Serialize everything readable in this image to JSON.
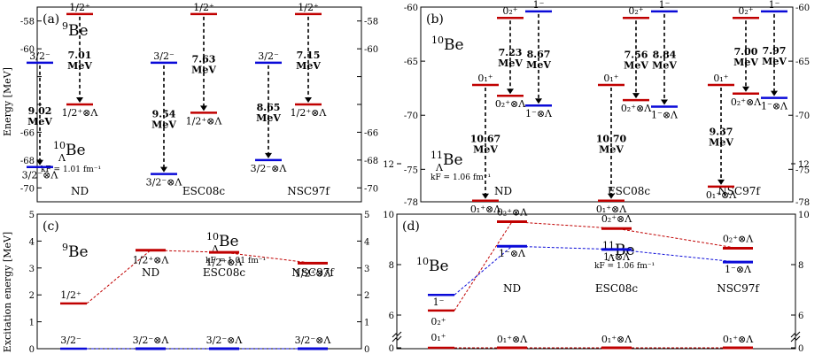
{
  "colors": {
    "red": "#c00000",
    "blue": "#0a0ad8",
    "axis": "#000000"
  },
  "y_axis_labels": {
    "top": "Energy [MeV]",
    "bottom": "Excitation energy [MeV]"
  },
  "chart_data": [
    {
      "panel": "(a)",
      "type": "level-diagram",
      "nucleus": "9Be",
      "hyp_nucleus": "10ΛBe",
      "kf": "kF = 1.01 fm⁻¹",
      "categories": [
        "ND",
        "ESC08c",
        "NSC97f"
      ],
      "ylim": [
        -71,
        -57
      ],
      "yticks": [
        -58,
        -60,
        -62,
        -64,
        -66,
        -68,
        -70
      ],
      "ytick_labels": [
        "-58",
        "-60",
        "",
        "",
        "-66",
        "-68",
        "-70"
      ],
      "levels": [
        {
          "state": "3/2⁻",
          "label": "3/2⁻",
          "energies": [
            -61.0,
            -61.0,
            -61.0
          ],
          "color": "blue",
          "label_pos": "above"
        },
        {
          "state": "1/2⁺",
          "label": "1/2⁺",
          "energies": [
            -57.5,
            -57.5,
            -57.5
          ],
          "color": "red",
          "label_pos": "above"
        },
        {
          "state": "3/2⁻⊗Λ",
          "label": "3/2⁻⊗Λ",
          "energies": [
            -68.5,
            -69.0,
            -68.0
          ],
          "color": "blue",
          "label_pos": "below"
        },
        {
          "state": "1/2⁺⊗Λ",
          "label": "1/2⁺⊗Λ",
          "energies": [
            -64.0,
            -64.6,
            -64.0
          ],
          "color": "red",
          "label_pos": "below"
        }
      ],
      "arrows": [
        {
          "from": "3/2⁻",
          "to": "3/2⁻⊗Λ",
          "values": [
            "9.02",
            "9.54",
            "8.65"
          ]
        },
        {
          "from": "1/2⁺",
          "to": "1/2⁺⊗Λ",
          "values": [
            "7.01",
            "7.63",
            "7.15"
          ]
        }
      ]
    },
    {
      "panel": "(b)",
      "type": "level-diagram",
      "nucleus": "10Be",
      "hyp_nucleus": "11ΛBe",
      "kf": "kF = 1.06 fm⁻¹",
      "categories": [
        "ND",
        "ESC08c",
        "NSC97f"
      ],
      "ylim": [
        -78,
        -60
      ],
      "yticks": [
        -60,
        -65,
        -70,
        -75,
        -78
      ],
      "ytick_labels": [
        "-60",
        "-65",
        "-70",
        "-75",
        "-78"
      ],
      "levels": [
        {
          "state": "0₁⁺",
          "label": "0₁⁺",
          "energies": [
            -67.2,
            -67.2,
            -67.2
          ],
          "color": "red",
          "label_pos": "above"
        },
        {
          "state": "0₂⁺",
          "label": "0₂⁺",
          "energies": [
            -61.0,
            -61.0,
            -61.0
          ],
          "color": "red",
          "label_pos": "above"
        },
        {
          "state": "1⁻",
          "label": "1⁻",
          "energies": [
            -60.4,
            -60.4,
            -60.4
          ],
          "color": "blue",
          "label_pos": "above"
        },
        {
          "state": "0₁⁺⊗Λ",
          "label": "0₁⁺⊗Λ",
          "energies": [
            -77.9,
            -77.9,
            -76.6
          ],
          "color": "red",
          "label_pos": "below"
        },
        {
          "state": "0₂⁺⊗Λ",
          "label": "0₂⁺⊗Λ",
          "energies": [
            -68.2,
            -68.6,
            -68.0
          ],
          "color": "red",
          "label_pos": "below"
        },
        {
          "state": "1⁻⊗Λ",
          "label": "1⁻⊗Λ",
          "energies": [
            -69.1,
            -69.2,
            -68.4
          ],
          "color": "blue",
          "label_pos": "below"
        }
      ],
      "arrows": [
        {
          "from": "0₁⁺",
          "to": "0₁⁺⊗Λ",
          "values": [
            "10.67",
            "10.70",
            "9.37"
          ]
        },
        {
          "from": "0₂⁺",
          "to": "0₂⁺⊗Λ",
          "values": [
            "7.23",
            "7.56",
            "7.00"
          ]
        },
        {
          "from": "1⁻",
          "to": "1⁻⊗Λ",
          "values": [
            "8.67",
            "8.84",
            "7.97"
          ]
        }
      ]
    },
    {
      "panel": "(c)",
      "type": "level-diagram",
      "nucleus": "9Be",
      "hyp_nucleus": "10ΛBe",
      "kf": "kF = 1.01 fm⁻¹",
      "categories": [
        "ND",
        "ESC08c",
        "NSC97f"
      ],
      "ylim": [
        0,
        5
      ],
      "yticks": [
        0,
        1,
        2,
        3,
        4,
        5
      ],
      "ytick_labels": [
        "0",
        "1",
        "2",
        "3",
        "4",
        "5"
      ],
      "core_levels": [
        {
          "label": "3/2⁻",
          "energy": 0,
          "color": "blue"
        },
        {
          "label": "1/2⁺",
          "energy": 1.68,
          "color": "red"
        }
      ],
      "series": [
        {
          "label": "1/2⁺⊗Λ",
          "color": "red",
          "values": [
            3.66,
            3.58,
            3.18
          ]
        },
        {
          "label": "3/2⁻⊗Λ",
          "color": "blue",
          "values": [
            0,
            0,
            0
          ]
        }
      ]
    },
    {
      "panel": "(d)",
      "type": "level-diagram",
      "nucleus": "10Be",
      "hyp_nucleus": "11ΛBe",
      "kf": "kF = 1.06 fm⁻¹",
      "categories": [
        "ND",
        "ESC08c",
        "NSC97f"
      ],
      "ylim": [
        0,
        12
      ],
      "axis_break": "6",
      "yticks": [
        0,
        6,
        8,
        10,
        12
      ],
      "ytick_labels": [
        "0",
        "6",
        "8",
        "10",
        "12"
      ],
      "core_levels": [
        {
          "label": "0₁⁺",
          "energy": 0,
          "color": "red"
        },
        {
          "label": "0₂⁺",
          "energy": 6.18,
          "color": "red"
        },
        {
          "label": "1⁻",
          "energy": 6.8,
          "color": "blue"
        }
      ],
      "series": [
        {
          "label": "0₂⁺⊗Λ",
          "color": "red",
          "values": [
            9.7,
            9.43,
            8.65
          ]
        },
        {
          "label": "1⁻⊗Λ",
          "color": "blue",
          "values": [
            8.73,
            8.6,
            8.1
          ]
        },
        {
          "label": "0₁⁺⊗Λ",
          "color": "red",
          "values": [
            0,
            0,
            0
          ]
        }
      ]
    }
  ]
}
